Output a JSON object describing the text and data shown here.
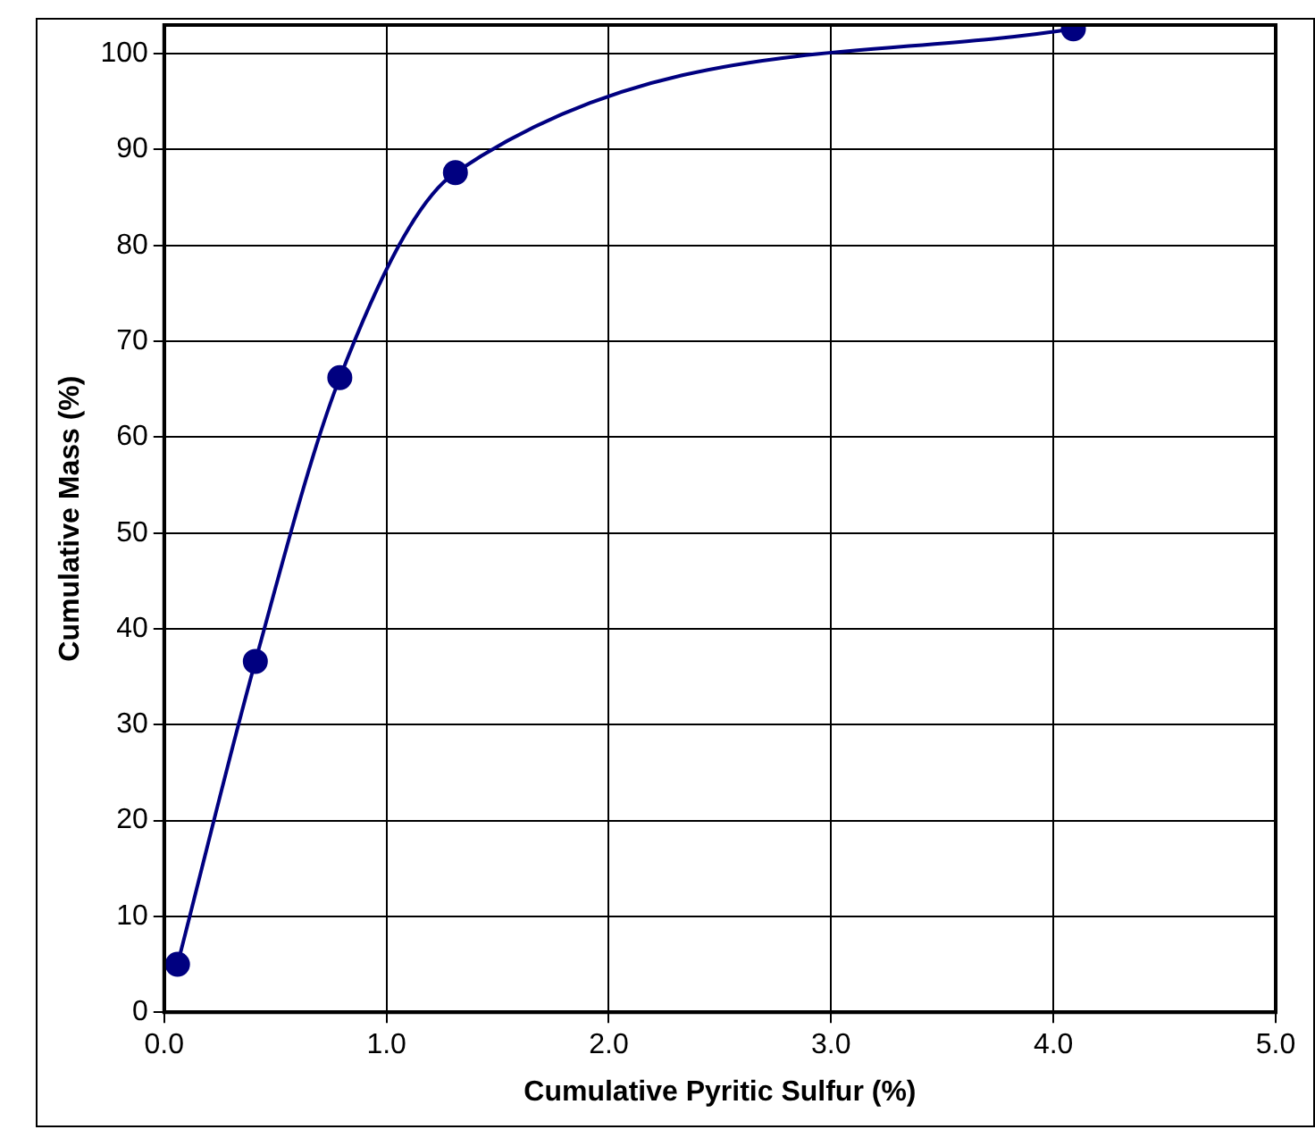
{
  "chart_data": {
    "type": "line",
    "xlabel": "Cumulative Pyritic Sulfur (%)",
    "ylabel": "Cumulative Mass (%)",
    "x": [
      0.06,
      0.41,
      0.79,
      1.31,
      4.09
    ],
    "series": [
      {
        "color": "#000080",
        "values": [
          5.0,
          36.6,
          66.2,
          87.6,
          102.6
        ]
      }
    ],
    "xlim": [
      0,
      5
    ],
    "xticks": [
      {
        "value": 0,
        "label": "0.0"
      },
      {
        "value": 1,
        "label": "1.0"
      },
      {
        "value": 2,
        "label": "2.0"
      },
      {
        "value": 3,
        "label": "3.0"
      },
      {
        "value": 4,
        "label": "4.0"
      },
      {
        "value": 5,
        "label": "5.0"
      }
    ],
    "ylim": [
      0,
      103
    ],
    "yticks": [
      0,
      10,
      20,
      30,
      40,
      50,
      60,
      70,
      80,
      90,
      100
    ],
    "grid": true,
    "marker": "circle",
    "line_style": "solid"
  }
}
